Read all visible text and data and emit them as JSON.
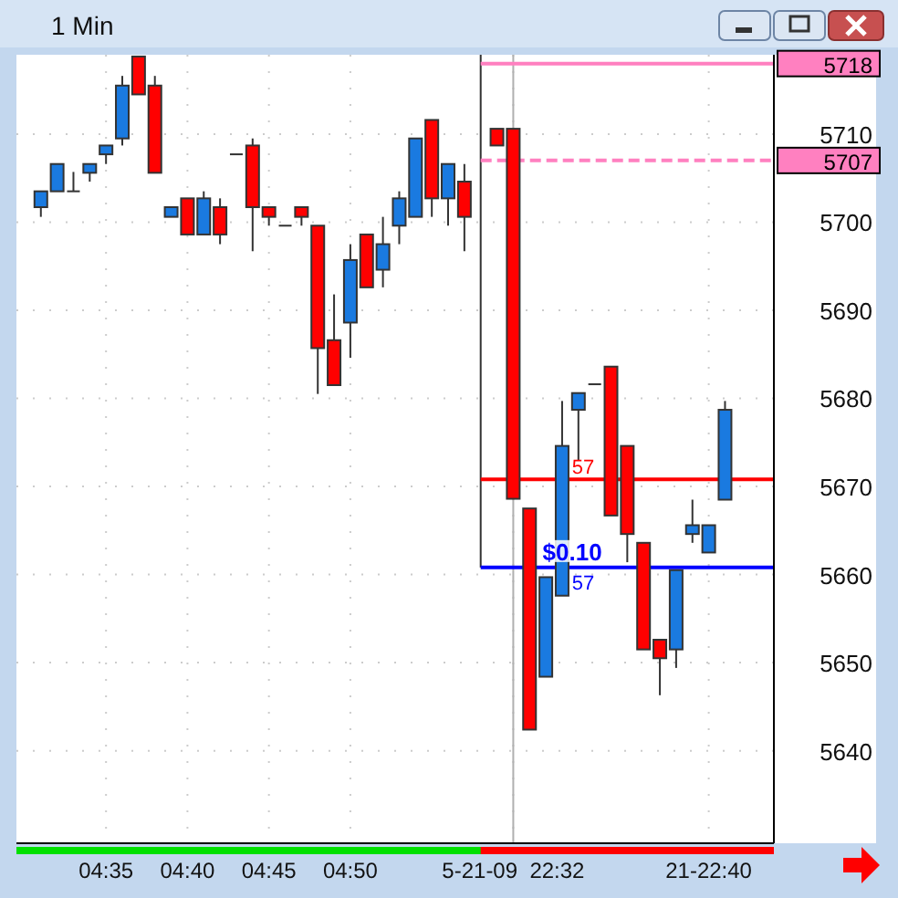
{
  "chart_data": {
    "type": "candlestick",
    "title": "1 Min",
    "categories": [
      null,
      null,
      null,
      null,
      "04:35",
      null,
      null,
      null,
      null,
      "04:40",
      null,
      null,
      null,
      null,
      "04:45",
      null,
      null,
      null,
      null,
      "04:50",
      null,
      null,
      null,
      null,
      null,
      null,
      null,
      null,
      null,
      "5-21-09  22:32",
      null,
      null,
      null,
      null,
      null,
      null,
      null,
      null,
      null,
      null,
      null,
      "21-22:40",
      null,
      null,
      null
    ],
    "ohlc": [
      [
        5701.7,
        5703.5,
        5700.6,
        5703.5
      ],
      [
        5703.5,
        5706.6,
        5703.5,
        5706.6
      ],
      [
        5703.5,
        5705.7,
        5703.5,
        5703.5
      ],
      [
        5705.6,
        5706.6,
        5704.6,
        5706.6
      ],
      [
        5707.7,
        5708.7,
        5706.6,
        5708.7
      ],
      [
        5709.5,
        5716.6,
        5708.7,
        5715.5
      ],
      [
        5718.8,
        5718.8,
        5714.5,
        5714.5
      ],
      [
        5715.5,
        5716.6,
        5705.6,
        5705.6
      ],
      [
        5700.6,
        5701.7,
        5700.6,
        5701.7
      ],
      [
        5702.7,
        5702.7,
        5698.6,
        5698.6
      ],
      [
        5698.6,
        5703.5,
        5698.6,
        5702.7
      ],
      [
        5701.7,
        5702.7,
        5697.5,
        5698.6
      ],
      [
        5707.7,
        5707.7,
        5707.7,
        5707.7
      ],
      [
        5708.7,
        5709.5,
        5696.7,
        5701.7
      ],
      [
        5701.7,
        5701.7,
        5699.6,
        5700.6
      ],
      [
        5699.6,
        5699.6,
        5699.6,
        5699.6
      ],
      [
        5701.7,
        5701.7,
        5699.6,
        5700.6
      ],
      [
        5699.6,
        5699.6,
        5680.5,
        5685.7
      ],
      [
        5686.6,
        5691.8,
        5681.5,
        5681.5
      ],
      [
        5688.6,
        5697.5,
        5684.6,
        5695.7
      ],
      [
        5698.6,
        5698.6,
        5692.6,
        5692.6
      ],
      [
        5694.6,
        5700.6,
        5692.6,
        5697.5
      ],
      [
        5699.6,
        5703.5,
        5697.5,
        5702.7
      ],
      [
        5700.6,
        5709.5,
        5700.6,
        5709.5
      ],
      [
        5711.6,
        5711.6,
        5700.6,
        5702.7
      ],
      [
        5702.7,
        5706.6,
        5699.6,
        5706.6
      ],
      [
        5704.6,
        5706.6,
        5696.7,
        5700.6
      ],
      null,
      [
        5710.6,
        5710.6,
        5708.7,
        5708.7
      ],
      [
        5710.6,
        5710.6,
        5668.6,
        5668.6
      ],
      [
        5667.5,
        5667.5,
        5642.4,
        5642.4
      ],
      [
        5648.4,
        5659.7,
        5648.4,
        5659.7
      ],
      [
        5657.6,
        5679.7,
        5657.6,
        5674.6
      ],
      [
        5678.7,
        5680.6,
        5673.0,
        5680.6
      ],
      [
        5681.6,
        5681.6,
        5681.6,
        5681.6
      ],
      [
        5683.6,
        5683.6,
        5666.7,
        5666.7
      ],
      [
        5674.6,
        5674.6,
        5661.4,
        5664.6
      ],
      [
        5663.6,
        5663.6,
        5651.5,
        5651.5
      ],
      [
        5652.6,
        5652.6,
        5646.3,
        5650.5
      ],
      [
        5651.5,
        5660.5,
        5649.4,
        5660.5
      ],
      [
        5664.6,
        5668.5,
        5663.6,
        5665.6
      ],
      [
        5662.5,
        5665.6,
        5662.5,
        5665.6
      ],
      [
        5668.5,
        5679.7,
        5668.5,
        5678.7
      ],
      null,
      null
    ],
    "colors": [
      "#1a7ae0",
      "#1a7ae0",
      "#333333",
      "#1a7ae0",
      "#1a7ae0",
      "#1a7ae0",
      "#ff0000",
      "#ff0000",
      "#1a7ae0",
      "#ff0000",
      "#1a7ae0",
      "#ff0000",
      "#333333",
      "#ff0000",
      "#ff0000",
      "#333333",
      "#ff0000",
      "#ff0000",
      "#ff0000",
      "#1a7ae0",
      "#ff0000",
      "#1a7ae0",
      "#1a7ae0",
      "#1a7ae0",
      "#ff0000",
      "#1a7ae0",
      "#ff0000",
      null,
      "#ff0000",
      "#ff0000",
      "#ff0000",
      "#1a7ae0",
      "#1a7ae0",
      "#1a7ae0",
      "#333333",
      "#ff0000",
      "#ff0000",
      "#ff0000",
      "#ff0000",
      "#1a7ae0",
      "#1a7ae0",
      "#1a7ae0",
      "#1a7ae0",
      null,
      null
    ],
    "ylim": [
      5629.5,
      5719
    ],
    "yticks": [
      5640,
      5650,
      5660,
      5670,
      5680,
      5690,
      5700,
      5710
    ],
    "grid": true,
    "ref_lines": [
      {
        "axis": "y",
        "value": 5718,
        "label": "5718",
        "color": "#ff80c0",
        "line_style": "solid"
      },
      {
        "axis": "y",
        "value": 5707,
        "label": "5707",
        "color": "#ff80c0",
        "line_style": "dashed"
      },
      {
        "axis": "y",
        "value": 5670.8,
        "color": "#ff0000",
        "line_style": "solid"
      },
      {
        "axis": "y",
        "value": 5660.8,
        "color": "#0000ff",
        "line_style": "solid"
      }
    ],
    "annotations": [
      "57",
      "$0.10",
      "57"
    ]
  }
}
